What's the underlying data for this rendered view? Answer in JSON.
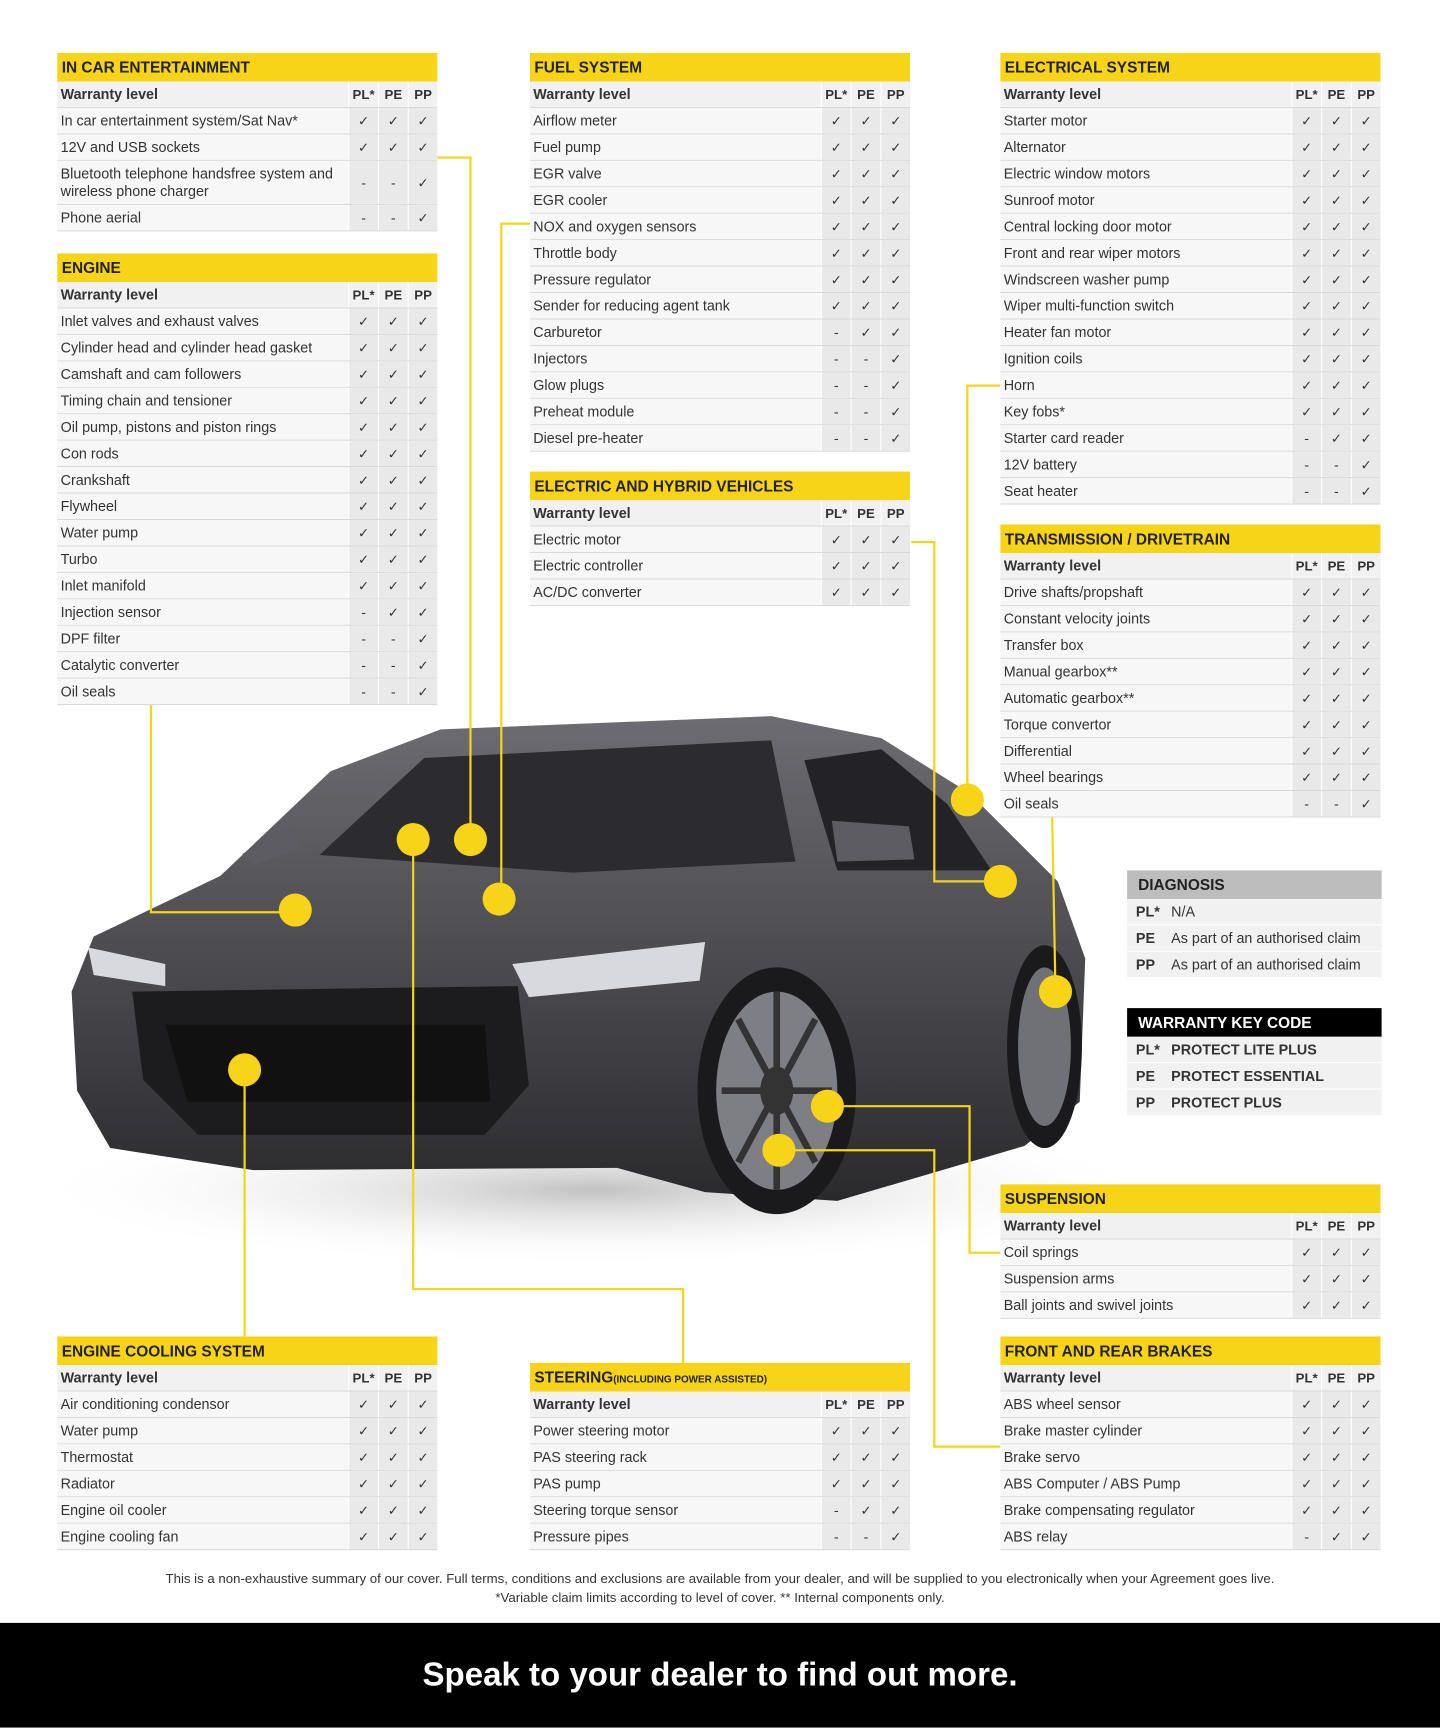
{
  "sections": [
    {
      "title": "IN CAR ENTERTAINMENT",
      "header": [
        "Warranty level",
        "PL*",
        "PE",
        "PP"
      ],
      "rows": [
        [
          "In car entertainment system/Sat Nav*",
          "✓",
          "✓",
          "✓"
        ],
        [
          "12V and USB sockets",
          "✓",
          "✓",
          "✓"
        ],
        [
          "Bluetooth telephone handsfree system and wireless phone charger",
          "-",
          "-",
          "✓"
        ],
        [
          "Phone aerial",
          "-",
          "-",
          "✓"
        ]
      ]
    },
    {
      "title": "ENGINE",
      "header": [
        "Warranty level",
        "PL*",
        "PE",
        "PP"
      ],
      "rows": [
        [
          "Inlet valves and exhaust valves",
          "✓",
          "✓",
          "✓"
        ],
        [
          "Cylinder head and cylinder head gasket",
          "✓",
          "✓",
          "✓"
        ],
        [
          "Camshaft and cam followers",
          "✓",
          "✓",
          "✓"
        ],
        [
          "Timing chain and tensioner",
          "✓",
          "✓",
          "✓"
        ],
        [
          "Oil pump, pistons and piston rings",
          "✓",
          "✓",
          "✓"
        ],
        [
          "Con rods",
          "✓",
          "✓",
          "✓"
        ],
        [
          "Crankshaft",
          "✓",
          "✓",
          "✓"
        ],
        [
          "Flywheel",
          "✓",
          "✓",
          "✓"
        ],
        [
          "Water pump",
          "✓",
          "✓",
          "✓"
        ],
        [
          "Turbo",
          "✓",
          "✓",
          "✓"
        ],
        [
          "Inlet manifold",
          "✓",
          "✓",
          "✓"
        ],
        [
          "Injection sensor",
          "-",
          "✓",
          "✓"
        ],
        [
          "DPF filter",
          "-",
          "-",
          "✓"
        ],
        [
          "Catalytic converter",
          "-",
          "-",
          "✓"
        ],
        [
          "Oil seals",
          "-",
          "-",
          "✓"
        ]
      ]
    },
    {
      "title": "ENGINE COOLING SYSTEM",
      "header": [
        "Warranty level",
        "PL*",
        "PE",
        "PP"
      ],
      "rows": [
        [
          "Air conditioning condensor",
          "✓",
          "✓",
          "✓"
        ],
        [
          "Water pump",
          "✓",
          "✓",
          "✓"
        ],
        [
          "Thermostat",
          "✓",
          "✓",
          "✓"
        ],
        [
          "Radiator",
          "✓",
          "✓",
          "✓"
        ],
        [
          "Engine oil cooler",
          "✓",
          "✓",
          "✓"
        ],
        [
          "Engine cooling fan",
          "✓",
          "✓",
          "✓"
        ]
      ]
    },
    {
      "title": "FUEL SYSTEM",
      "header": [
        "Warranty level",
        "PL*",
        "PE",
        "PP"
      ],
      "rows": [
        [
          "Airflow meter",
          "✓",
          "✓",
          "✓"
        ],
        [
          "Fuel pump",
          "✓",
          "✓",
          "✓"
        ],
        [
          "EGR valve",
          "✓",
          "✓",
          "✓"
        ],
        [
          "EGR cooler",
          "✓",
          "✓",
          "✓"
        ],
        [
          "NOX and oxygen sensors",
          "✓",
          "✓",
          "✓"
        ],
        [
          "Throttle body",
          "✓",
          "✓",
          "✓"
        ],
        [
          "Pressure regulator",
          "✓",
          "✓",
          "✓"
        ],
        [
          "Sender for reducing agent tank",
          "✓",
          "✓",
          "✓"
        ],
        [
          "Carburetor",
          "-",
          "✓",
          "✓"
        ],
        [
          "Injectors",
          "-",
          "-",
          "✓"
        ],
        [
          "Glow plugs",
          "-",
          "-",
          "✓"
        ],
        [
          "Preheat module",
          "-",
          "-",
          "✓"
        ],
        [
          "Diesel pre-heater",
          "-",
          "-",
          "✓"
        ]
      ]
    },
    {
      "title": "ELECTRIC AND HYBRID VEHICLES",
      "header": [
        "Warranty level",
        "PL*",
        "PE",
        "PP"
      ],
      "rows": [
        [
          "Electric motor",
          "✓",
          "✓",
          "✓"
        ],
        [
          "Electric controller",
          "✓",
          "✓",
          "✓"
        ],
        [
          "AC/DC converter",
          "✓",
          "✓",
          "✓"
        ]
      ]
    },
    {
      "title": "STEERING",
      "subtitle": "(INCLUDING POWER ASSISTED)",
      "header": [
        "Warranty level",
        "PL*",
        "PE",
        "PP"
      ],
      "rows": [
        [
          "Power steering motor",
          "✓",
          "✓",
          "✓"
        ],
        [
          "PAS steering rack",
          "✓",
          "✓",
          "✓"
        ],
        [
          "PAS pump",
          "✓",
          "✓",
          "✓"
        ],
        [
          "Steering torque sensor",
          "-",
          "✓",
          "✓"
        ],
        [
          "Pressure pipes",
          "-",
          "-",
          "✓"
        ]
      ]
    },
    {
      "title": "ELECTRICAL SYSTEM",
      "header": [
        "Warranty level",
        "PL*",
        "PE",
        "PP"
      ],
      "rows": [
        [
          "Starter motor",
          "✓",
          "✓",
          "✓"
        ],
        [
          "Alternator",
          "✓",
          "✓",
          "✓"
        ],
        [
          "Electric window motors",
          "✓",
          "✓",
          "✓"
        ],
        [
          "Sunroof motor",
          "✓",
          "✓",
          "✓"
        ],
        [
          "Central locking door motor",
          "✓",
          "✓",
          "✓"
        ],
        [
          "Front and rear wiper motors",
          "✓",
          "✓",
          "✓"
        ],
        [
          "Windscreen washer pump",
          "✓",
          "✓",
          "✓"
        ],
        [
          "Wiper multi-function switch",
          "✓",
          "✓",
          "✓"
        ],
        [
          "Heater fan motor",
          "✓",
          "✓",
          "✓"
        ],
        [
          "Ignition coils",
          "✓",
          "✓",
          "✓"
        ],
        [
          "Horn",
          "✓",
          "✓",
          "✓"
        ],
        [
          "Key fobs*",
          "✓",
          "✓",
          "✓"
        ],
        [
          "Starter card reader",
          "-",
          "✓",
          "✓"
        ],
        [
          "12V battery",
          "-",
          "-",
          "✓"
        ],
        [
          "Seat heater",
          "-",
          "-",
          "✓"
        ]
      ]
    },
    {
      "title": "TRANSMISSION / DRIVETRAIN",
      "header": [
        "Warranty level",
        "PL*",
        "PE",
        "PP"
      ],
      "rows": [
        [
          "Drive shafts/propshaft",
          "✓",
          "✓",
          "✓"
        ],
        [
          "Constant velocity joints",
          "✓",
          "✓",
          "✓"
        ],
        [
          "Transfer box",
          "✓",
          "✓",
          "✓"
        ],
        [
          "Manual gearbox**",
          "✓",
          "✓",
          "✓"
        ],
        [
          "Automatic gearbox**",
          "✓",
          "✓",
          "✓"
        ],
        [
          "Torque convertor",
          "✓",
          "✓",
          "✓"
        ],
        [
          "Differential",
          "✓",
          "✓",
          "✓"
        ],
        [
          "Wheel bearings",
          "✓",
          "✓",
          "✓"
        ],
        [
          "Oil seals",
          "-",
          "-",
          "✓"
        ]
      ]
    },
    {
      "title": "SUSPENSION",
      "header": [
        "Warranty level",
        "PL*",
        "PE",
        "PP"
      ],
      "rows": [
        [
          "Coil springs",
          "✓",
          "✓",
          "✓"
        ],
        [
          "Suspension arms",
          "✓",
          "✓",
          "✓"
        ],
        [
          "Ball joints and swivel joints",
          "✓",
          "✓",
          "✓"
        ]
      ]
    },
    {
      "title": "FRONT AND REAR BRAKES",
      "header": [
        "Warranty level",
        "PL*",
        "PE",
        "PP"
      ],
      "rows": [
        [
          "ABS wheel sensor",
          "✓",
          "✓",
          "✓"
        ],
        [
          "Brake master cylinder",
          "✓",
          "✓",
          "✓"
        ],
        [
          "Brake servo",
          "✓",
          "✓",
          "✓"
        ],
        [
          "ABS Computer / ABS Pump",
          "✓",
          "✓",
          "✓"
        ],
        [
          "Brake compensating regulator",
          "✓",
          "✓",
          "✓"
        ],
        [
          "ABS relay",
          "-",
          "✓",
          "✓"
        ]
      ]
    }
  ],
  "diagnosis": {
    "title": "DIAGNOSIS",
    "rows": [
      [
        "PL*",
        "N/A"
      ],
      [
        "PE",
        "As part of an authorised claim"
      ],
      [
        "PP",
        "As part of an authorised claim"
      ]
    ]
  },
  "key_code": {
    "title": "WARRANTY KEY CODE",
    "rows": [
      [
        "PL*",
        "PROTECT LITE PLUS"
      ],
      [
        "PE",
        "PROTECT ESSENTIAL"
      ],
      [
        "PP",
        "PROTECT PLUS"
      ]
    ]
  },
  "footnote": {
    "lines": [
      "This is a non-exhaustive summary of our cover. Full terms, conditions and exclusions are available from your dealer, and will be supplied to you electronically when your Agreement goes live.",
      "*Variable claim limits according to level of cover. ** Internal components only."
    ]
  },
  "banner": {
    "text": "Speak to your dealer to find out more."
  }
}
